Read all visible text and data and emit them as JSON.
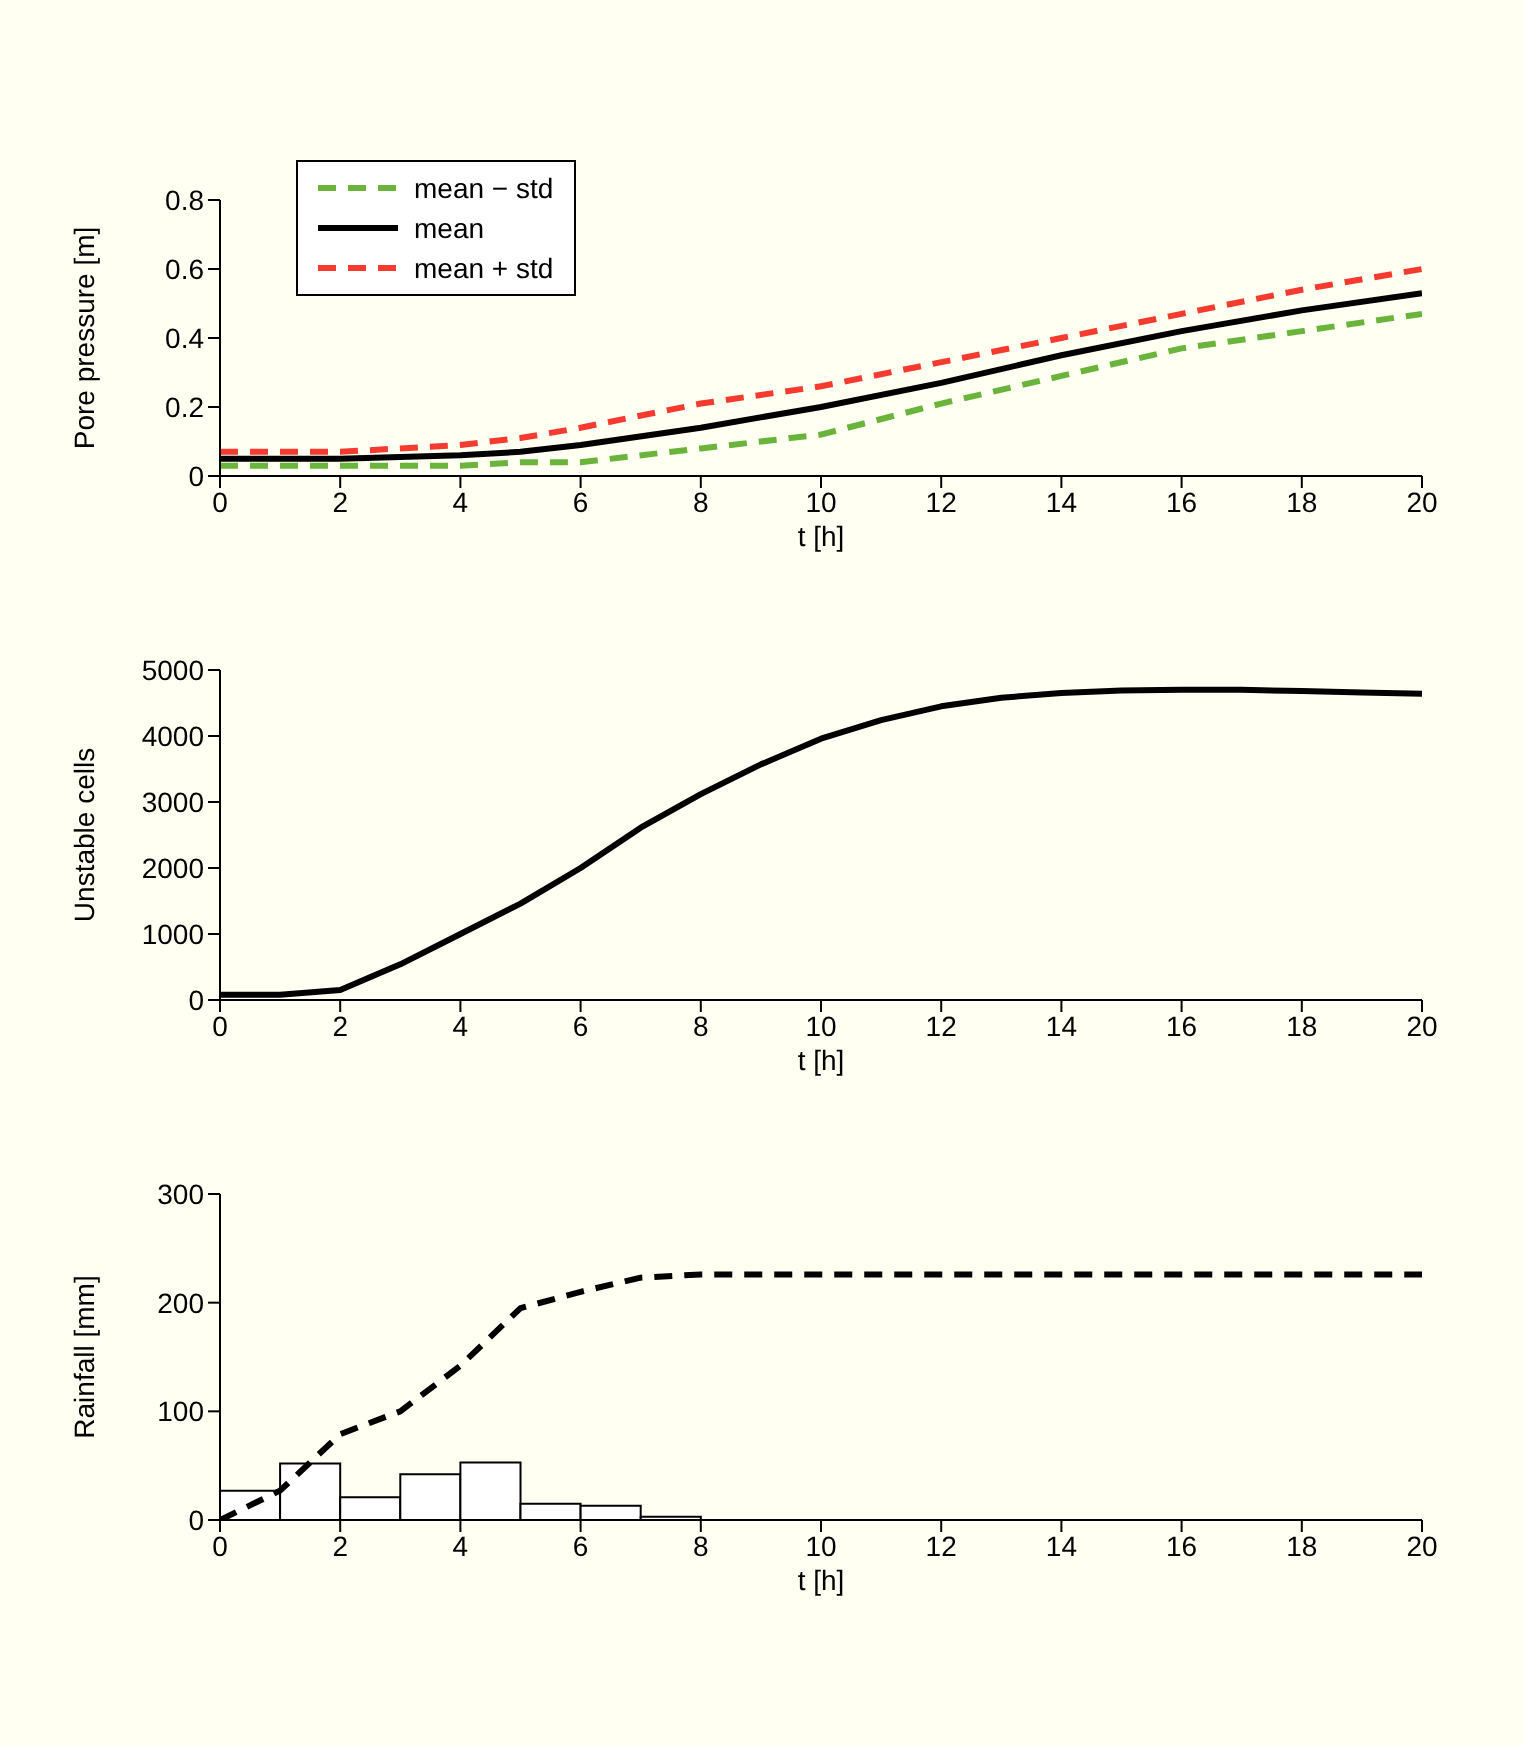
{
  "chart_data": [
    {
      "type": "line",
      "ylabel": "Pore pressure [m]",
      "xlabel": "t [h]",
      "xlim": [
        0,
        20
      ],
      "xticks": [
        0,
        2,
        4,
        6,
        8,
        10,
        12,
        14,
        16,
        18,
        20
      ],
      "ylim": [
        0,
        0.8
      ],
      "yticks": [
        0,
        0.2,
        0.4,
        0.6,
        0.8
      ],
      "legend": "top left",
      "x": [
        0,
        2,
        4,
        5,
        6,
        8,
        10,
        12,
        14,
        16,
        18,
        20
      ],
      "series": [
        {
          "name": "mean − std",
          "color": "#6ab43c",
          "line_style": "dashed",
          "values": [
            0.03,
            0.03,
            0.03,
            0.04,
            0.04,
            0.08,
            0.12,
            0.21,
            0.29,
            0.37,
            0.42,
            0.47
          ]
        },
        {
          "name": "mean",
          "color": "#000000",
          "line_style": "solid",
          "values": [
            0.05,
            0.05,
            0.06,
            0.07,
            0.09,
            0.14,
            0.2,
            0.27,
            0.35,
            0.42,
            0.48,
            0.53
          ]
        },
        {
          "name": "mean + std",
          "color": "#f53b2f",
          "line_style": "dashed",
          "values": [
            0.07,
            0.07,
            0.09,
            0.11,
            0.14,
            0.21,
            0.26,
            0.33,
            0.4,
            0.47,
            0.54,
            0.6
          ]
        }
      ]
    },
    {
      "type": "line",
      "ylabel": "Unstable cells",
      "xlabel": "t [h]",
      "xlim": [
        0,
        20
      ],
      "xticks": [
        0,
        2,
        4,
        6,
        8,
        10,
        12,
        14,
        16,
        18,
        20
      ],
      "ylim": [
        0,
        5000
      ],
      "yticks": [
        0,
        1000,
        2000,
        3000,
        4000,
        5000
      ],
      "x": [
        0,
        1,
        2,
        3,
        4,
        5,
        6,
        7,
        8,
        9,
        10,
        11,
        12,
        13,
        14,
        15,
        16,
        17,
        18,
        19,
        20
      ],
      "series": [
        {
          "color": "#000000",
          "line_style": "solid",
          "values": [
            80,
            80,
            150,
            540,
            1000,
            1460,
            2000,
            2610,
            3120,
            3570,
            3960,
            4240,
            4450,
            4580,
            4650,
            4690,
            4700,
            4700,
            4680,
            4660,
            4640
          ]
        }
      ]
    },
    {
      "type": "histogram",
      "ylabel": "Rainfall [mm]",
      "xlabel": "t [h]",
      "xlim": [
        0,
        20
      ],
      "xticks": [
        0,
        2,
        4,
        6,
        8,
        10,
        12,
        14,
        16,
        18,
        20
      ],
      "ylim": [
        0,
        300
      ],
      "yticks": [
        0,
        100,
        200,
        300
      ],
      "series": [
        {
          "type": "histogram",
          "color": "#ffffff",
          "bins": [
            0,
            1,
            2,
            3,
            4,
            5,
            6,
            7,
            8
          ],
          "values": [
            27,
            52,
            21,
            42,
            53,
            15,
            13,
            3
          ]
        },
        {
          "type": "line",
          "color": "#000000",
          "line_style": "dashed",
          "x": [
            0,
            1,
            2,
            3,
            4,
            5,
            6,
            7,
            8,
            20
          ],
          "values": [
            0,
            27,
            79,
            100,
            142,
            195,
            210,
            223,
            226,
            226
          ]
        }
      ]
    }
  ]
}
